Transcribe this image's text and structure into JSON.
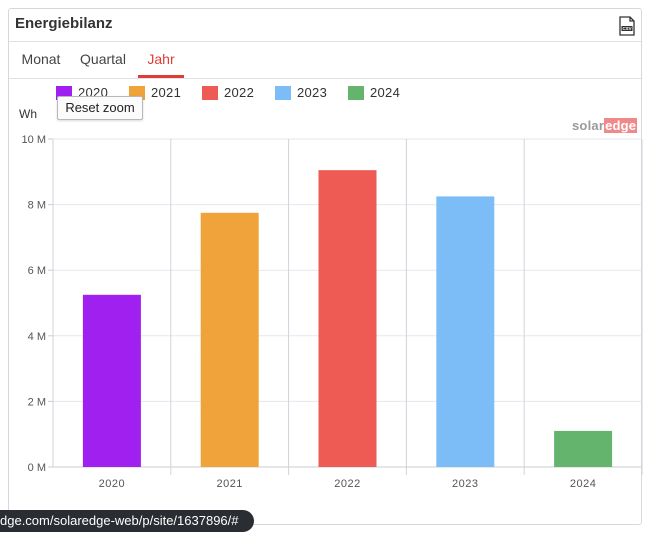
{
  "panel": {
    "title": "Energiebilanz",
    "csv_icon": "csv-file-icon"
  },
  "tabs": [
    {
      "label": "Monat",
      "active": false
    },
    {
      "label": "Quartal",
      "active": false
    },
    {
      "label": "Jahr",
      "active": true
    }
  ],
  "reset_zoom_label": "Reset zoom",
  "brand": {
    "text": "solar",
    "accent_text": "edge"
  },
  "status_url": "dge.com/solaredge-web/p/site/1637896/#",
  "chart_data": {
    "type": "bar",
    "ylabel": "Wh",
    "ylim": [
      0,
      10000000
    ],
    "yticks": [
      0,
      2000000,
      4000000,
      6000000,
      8000000,
      10000000
    ],
    "ytick_labels": [
      "0 M",
      "2 M",
      "4 M",
      "6 M",
      "8 M",
      "10 M"
    ],
    "grid": true,
    "legend_position": "top-left",
    "categories": [
      "2020",
      "2021",
      "2022",
      "2023",
      "2024"
    ],
    "series": [
      {
        "name": "2020",
        "color": "#a020f0",
        "values": [
          5250000,
          null,
          null,
          null,
          null
        ]
      },
      {
        "name": "2021",
        "color": "#f0a33a",
        "values": [
          null,
          7750000,
          null,
          null,
          null
        ]
      },
      {
        "name": "2022",
        "color": "#ee5b55",
        "values": [
          null,
          null,
          9050000,
          null,
          null
        ]
      },
      {
        "name": "2023",
        "color": "#7dbdf7",
        "values": [
          null,
          null,
          null,
          8250000,
          null
        ]
      },
      {
        "name": "2024",
        "color": "#64b46d",
        "values": [
          null,
          null,
          null,
          null,
          1100000
        ]
      }
    ]
  }
}
